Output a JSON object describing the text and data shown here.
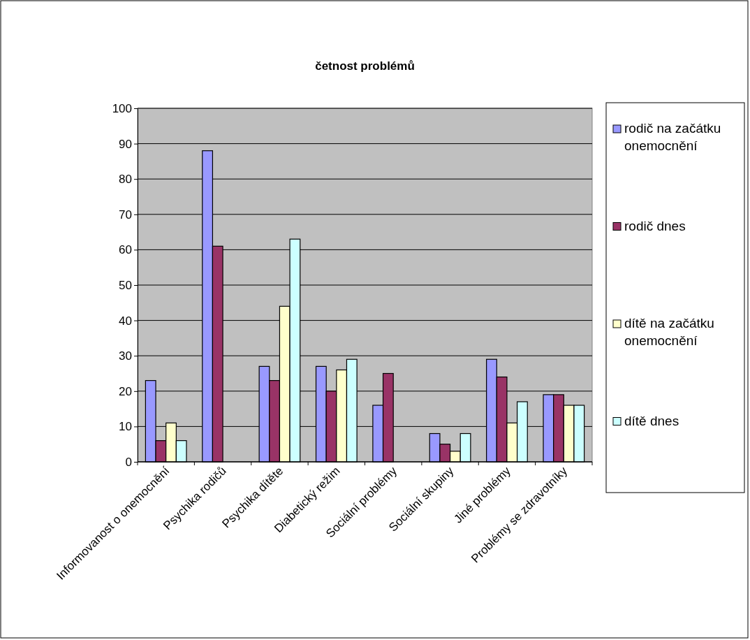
{
  "chart_data": {
    "type": "bar",
    "title": "četnost problémů",
    "categories": [
      "Informovanost o onemocnění",
      "Psychika rodičů",
      "Psychika dítěte",
      "Diabetický režim",
      "Sociální problémy",
      "Sociální skupiny",
      "Jiné problémy",
      "Problémy se zdravotníky"
    ],
    "series": [
      {
        "name": "rodič na začátku onemocnění",
        "color": "#9999ff",
        "values": [
          23,
          88,
          27,
          27,
          16,
          8,
          29,
          19
        ]
      },
      {
        "name": "rodič dnes",
        "color": "#993366",
        "values": [
          6,
          61,
          23,
          20,
          25,
          5,
          24,
          19
        ]
      },
      {
        "name": "dítě na začátku onemocnění",
        "color": "#ffffcc",
        "values": [
          11,
          null,
          44,
          26,
          null,
          3,
          11,
          16
        ]
      },
      {
        "name": "dítě dnes",
        "color": "#ccffff",
        "values": [
          6,
          null,
          63,
          29,
          null,
          8,
          17,
          16
        ]
      }
    ],
    "ylim": [
      0,
      100
    ],
    "yticks": [
      0,
      10,
      20,
      30,
      40,
      50,
      60,
      70,
      80,
      90,
      100
    ],
    "grid": "y",
    "legend": "right"
  }
}
